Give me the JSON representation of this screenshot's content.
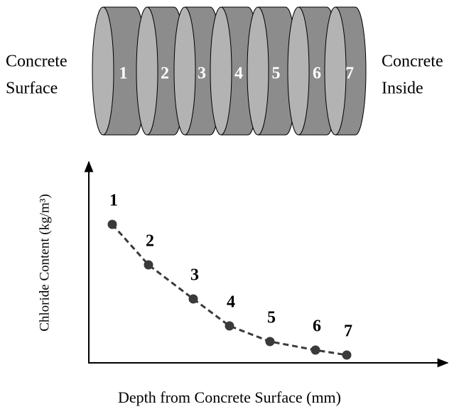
{
  "left_label": [
    "Concrete",
    "Surface"
  ],
  "right_label": [
    "Concrete",
    "Inside"
  ],
  "slices": [
    "1",
    "2",
    "3",
    "4",
    "5",
    "6",
    "7"
  ],
  "graph": {
    "y_axis_label": "Chloride Content (kg/m³)",
    "x_axis_label": "Depth from Concrete Surface (mm)",
    "point_labels": [
      "1",
      "2",
      "3",
      "4",
      "5",
      "6",
      "7"
    ]
  }
}
